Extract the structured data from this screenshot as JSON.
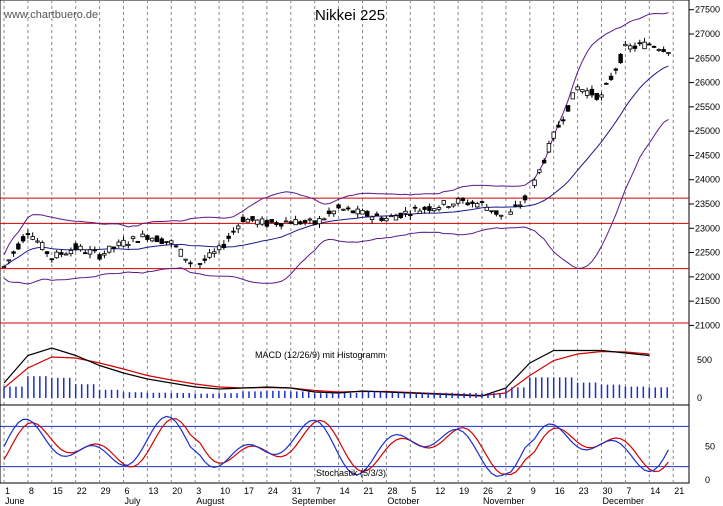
{
  "watermark": "www.chartbuero.de",
  "chart_data": {
    "type": "candlestick",
    "title": "Nikkei 225",
    "price_axis": {
      "ylim": [
        20700,
        27700
      ],
      "ticks": [
        21000,
        21500,
        22000,
        22500,
        23000,
        23500,
        24000,
        24500,
        25000,
        25500,
        26000,
        26500,
        27000,
        27500
      ]
    },
    "horizontal_lines": [
      21050,
      22170,
      23100,
      23620
    ],
    "x_axis": {
      "day_labels": [
        "1",
        "8",
        "15",
        "22",
        "29",
        "6",
        "13",
        "20",
        "3",
        "10",
        "17",
        "24",
        "31",
        "7",
        "14",
        "21",
        "28",
        "5",
        "12",
        "19",
        "26",
        "2",
        "9",
        "16",
        "23",
        "30",
        "7",
        "14",
        "21"
      ],
      "months": [
        {
          "label": "June",
          "index": 0
        },
        {
          "label": "July",
          "index": 5
        },
        {
          "label": "August",
          "index": 8
        },
        {
          "label": "September",
          "index": 12
        },
        {
          "label": "October",
          "index": 16
        },
        {
          "label": "November",
          "index": 20
        },
        {
          "label": "December",
          "index": 25
        }
      ],
      "grid": "dashed"
    },
    "weekly_closes": [
      22200,
      22950,
      22400,
      22600,
      22450,
      22700,
      22850,
      22700,
      22200,
      22550,
      23200,
      23100,
      23150,
      23100,
      23400,
      23300,
      23200,
      23350,
      23450,
      23550,
      23500,
      23200,
      23700,
      24900,
      25900,
      25700,
      26700,
      26800,
      26650
    ],
    "macd": {
      "label": "MACD (12/26/9) mit Histogramm",
      "ticks": [
        500,
        0
      ],
      "macd_line": [
        0.3,
        0.85,
        1.0,
        0.85,
        0.65,
        0.5,
        0.38,
        0.3,
        0.22,
        0.18,
        0.2,
        0.22,
        0.2,
        0.12,
        0.1,
        0.14,
        0.12,
        0.1,
        0.08,
        0.06,
        0.04,
        0.2,
        0.7,
        0.95,
        0.95,
        0.95,
        0.9,
        0.85
      ],
      "signal_line": [
        0.2,
        0.6,
        0.82,
        0.8,
        0.7,
        0.58,
        0.45,
        0.36,
        0.28,
        0.22,
        0.2,
        0.21,
        0.2,
        0.15,
        0.12,
        0.13,
        0.13,
        0.11,
        0.09,
        0.07,
        0.05,
        0.1,
        0.45,
        0.75,
        0.88,
        0.93,
        0.92,
        0.88
      ]
    },
    "stochastic": {
      "label": "Stochastik (5/3/3)",
      "ticks": [
        50,
        0
      ],
      "upper_level": 80,
      "lower_level": 20
    }
  }
}
